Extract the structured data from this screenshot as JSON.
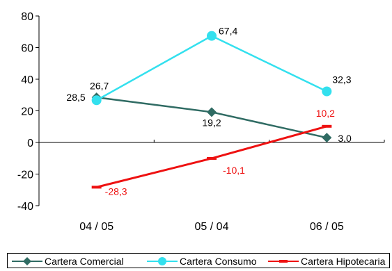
{
  "chart_data": {
    "type": "line",
    "categories": [
      "04 / 05",
      "05 / 04",
      "06 / 05"
    ],
    "ylim": [
      -40,
      80
    ],
    "yticks": [
      "80",
      "60",
      "40",
      "20",
      "0",
      "-20",
      "-40"
    ],
    "grid": false,
    "legend_position": "bottom",
    "series": [
      {
        "name": "Cartera Comercial",
        "values": [
          28.5,
          19.2,
          3.0
        ],
        "labels": [
          "28,5",
          "19,2",
          "3,0"
        ],
        "color": "#2f6b63",
        "marker": "diamond"
      },
      {
        "name": "Cartera Consumo",
        "values": [
          26.7,
          67.4,
          32.3
        ],
        "labels": [
          "26,7",
          "67,4",
          "32,3"
        ],
        "color": "#33e0ee",
        "marker": "circle"
      },
      {
        "name": "Cartera Hipotecaria",
        "values": [
          -28.3,
          -10.1,
          10.2
        ],
        "labels": [
          "-28,3",
          "-10,1",
          "10,2"
        ],
        "color": "#ee1111",
        "marker": "dash"
      }
    ]
  },
  "legend": {
    "items": [
      {
        "label": "Cartera Comercial"
      },
      {
        "label": "Cartera Consumo"
      },
      {
        "label": "Cartera Hipotecaria"
      }
    ]
  }
}
